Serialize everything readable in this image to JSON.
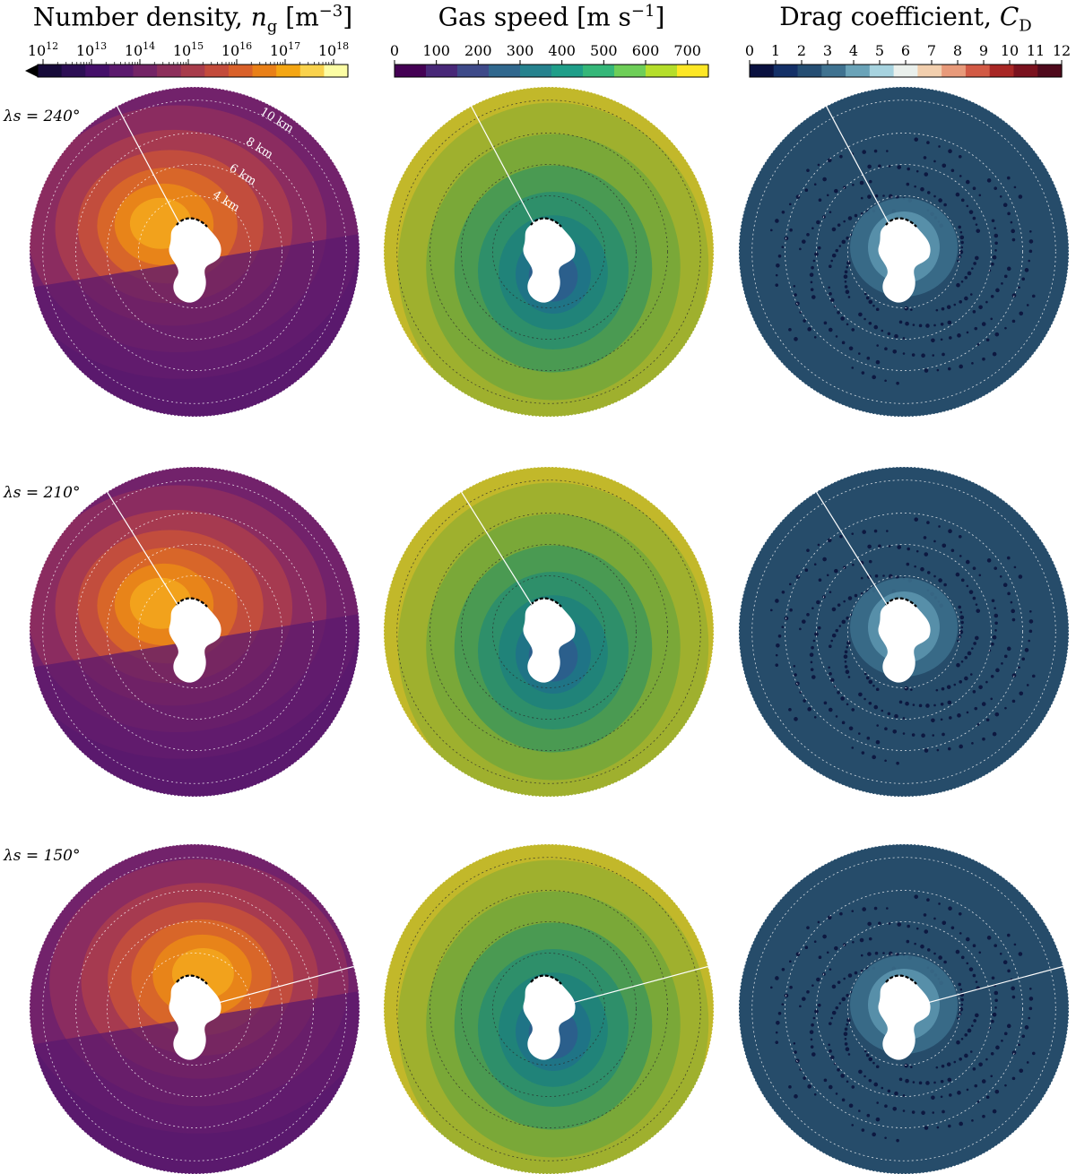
{
  "figure": {
    "columns": [
      {
        "title": "Number density, n_g [m^-3]",
        "title_text": "Number density, ",
        "title_sym": "n",
        "title_sub": "g",
        "title_unit": " [m",
        "title_exp": "−3",
        "title_tail": "]"
      },
      {
        "title": "Gas speed [m s^-1]",
        "title_text": "Gas speed [m s",
        "title_exp": "−1",
        "title_tail": "]"
      },
      {
        "title": "Drag coefficient, C_D",
        "title_text": "Drag coefficient, ",
        "title_sym": "C",
        "title_sub": "D"
      }
    ],
    "rows": [
      {
        "label": "λs = 240°"
      },
      {
        "label": "λs = 210°"
      },
      {
        "label": "λs = 150°"
      }
    ],
    "ring_labels": [
      "10 km",
      "8 km",
      "6 km",
      "4 km"
    ]
  },
  "chart_data": [
    {
      "type": "heatmap",
      "title": "Number density, n_g [m^-3]",
      "colorbar": {
        "scale": "log",
        "tick_labels": [
          "10^12",
          "10^13",
          "10^14",
          "10^15",
          "10^16",
          "10^17",
          "10^18"
        ],
        "range": [
          1000000000000.0,
          1e+18
        ],
        "extend": "min",
        "colors": [
          "#170b3a",
          "#2d0f55",
          "#45106a",
          "#5c1a6e",
          "#742466",
          "#8d2f5b",
          "#a83c4b",
          "#c34b3b",
          "#d9612a",
          "#e98018",
          "#f4a614",
          "#f9d24d",
          "#fcfda4"
        ]
      },
      "rows": [
        "λs = 240°",
        "λs = 210°",
        "λs = 150°"
      ]
    },
    {
      "type": "heatmap",
      "title": "Gas speed [m s^-1]",
      "colorbar": {
        "scale": "linear",
        "ticks": [
          0,
          100,
          200,
          300,
          400,
          500,
          600,
          700
        ],
        "range": [
          0,
          750
        ],
        "colors": [
          "#440154",
          "#482878",
          "#3e4a89",
          "#31688e",
          "#26828e",
          "#1f9e89",
          "#35b779",
          "#6ece58",
          "#b5de2b",
          "#fde725"
        ]
      },
      "rows": [
        "λs = 240°",
        "λs = 210°",
        "λs = 150°"
      ]
    },
    {
      "type": "heatmap",
      "title": "Drag coefficient, C_D",
      "colorbar": {
        "scale": "linear",
        "ticks": [
          0,
          1,
          2,
          3,
          4,
          5,
          6,
          7,
          8,
          9,
          10,
          11,
          12
        ],
        "range": [
          0,
          12
        ],
        "colors": [
          "#0a1140",
          "#143067",
          "#254e73",
          "#3f7290",
          "#6aa3b8",
          "#a7d3df",
          "#eaf0ec",
          "#f2cfae",
          "#e89a7a",
          "#d25a45",
          "#a82725",
          "#7a121e",
          "#4f0a1c"
        ]
      },
      "rows": [
        "λs = 240°",
        "λs = 210°",
        "λs = 150°"
      ]
    }
  ]
}
